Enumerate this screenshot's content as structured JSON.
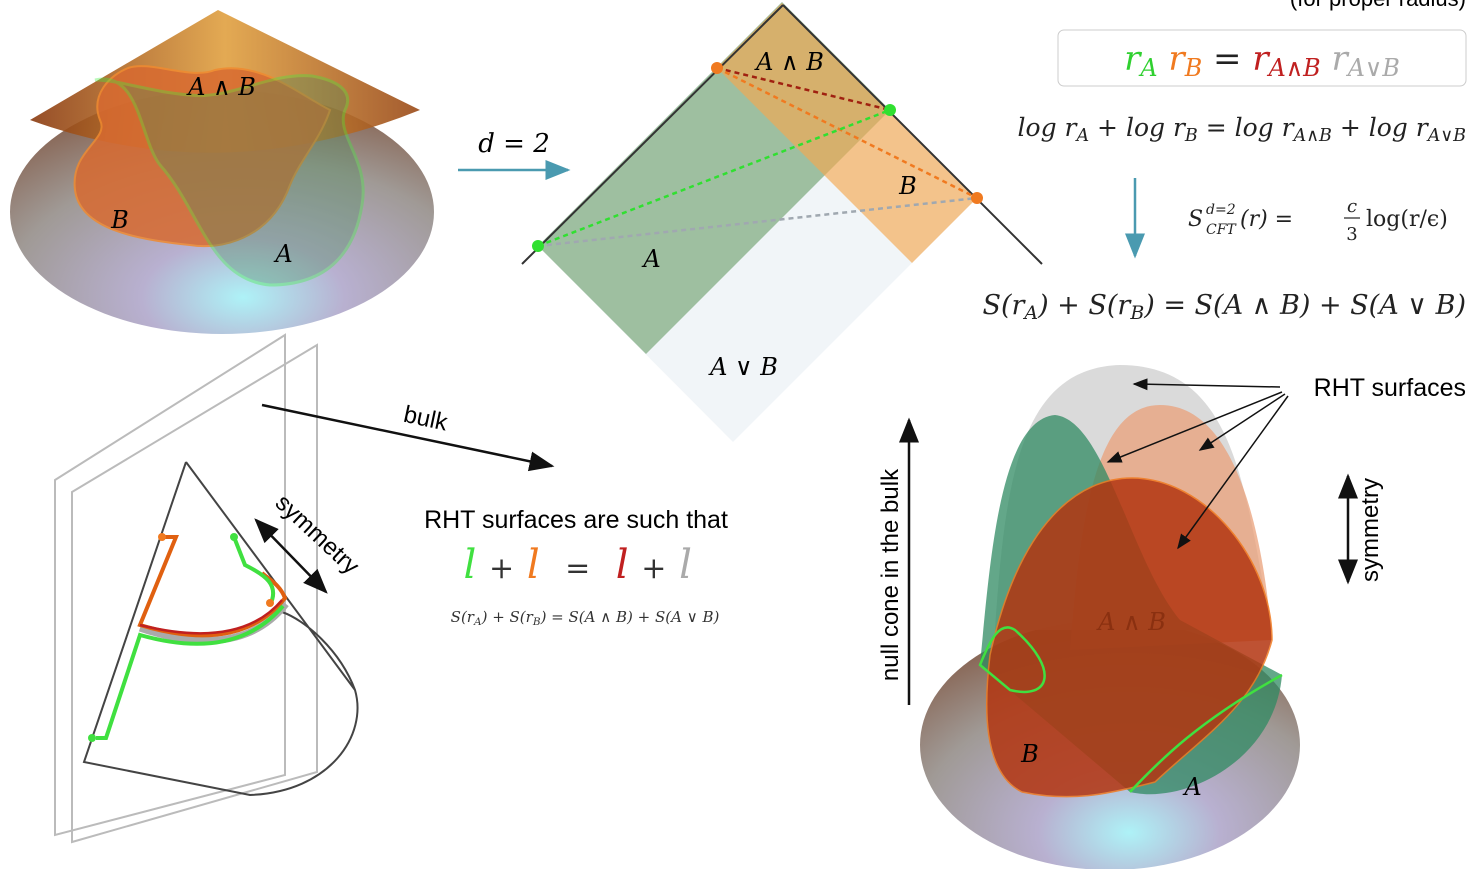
{
  "note": "(for proper radius)",
  "product_formula": [
    "r",
    "A",
    "r",
    "B",
    "=",
    "r",
    "A∧B",
    "r",
    "A∨B"
  ],
  "log_formula": [
    "log r",
    "A",
    " + log r",
    "B",
    " = log r",
    "A∧B",
    " + log r",
    "A∨B"
  ],
  "cft_formula": {
    "lhs": "S",
    "sup": "d=2",
    "sub": "CFT",
    "args": "(r) =",
    "num": "c",
    "den": "3",
    "rhs": "log(r/ϵ)"
  },
  "entropy_formula": [
    "S(r",
    "A",
    ") + S(r",
    "B",
    ") = S(A ∧ B) + S(A ∨ B)"
  ],
  "d_label": "d = 2",
  "boundary_cone": {
    "labels": [
      "A ∧ B",
      "B",
      "A"
    ]
  },
  "diamond": {
    "labels": [
      "A ∧ B",
      "B",
      "A",
      "A ∨ B"
    ]
  },
  "bulk_label": "bulk",
  "symmetry_left": "symmetry",
  "rht_text": "RHT surfaces are such that",
  "l_equation": [
    "l",
    "+",
    "l",
    "=",
    "l",
    "+",
    "l"
  ],
  "small_formula": [
    "S(r",
    "A",
    ") + S(r",
    "B",
    ") = S(A ∧ B) + S(A ∨ B)"
  ],
  "rht_label": "RHT surfaces",
  "null_cone_label": "null cone in the bulk",
  "symmetry_right": "symmetry",
  "bulk_cone": {
    "labels": [
      "A ∧ B",
      "B",
      "A"
    ]
  }
}
